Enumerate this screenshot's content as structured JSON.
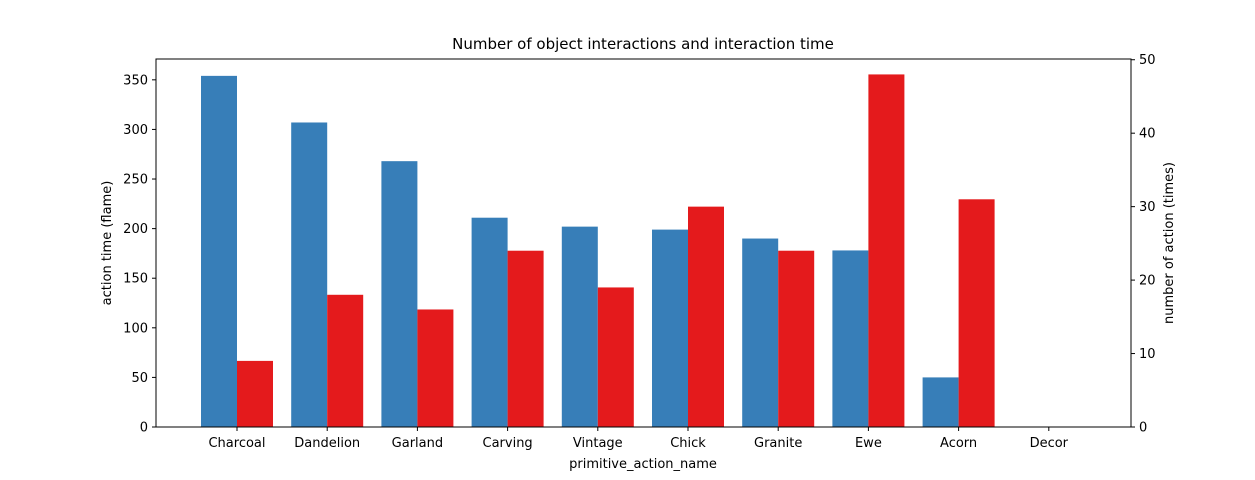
{
  "chart_data": {
    "type": "bar",
    "title": "Number of object interactions and interaction time",
    "xlabel": "primitive_action_name",
    "ylabel": "action time (flame)",
    "y2label": "number of action (times)",
    "categories": [
      "Charcoal",
      "Dandelion",
      "Garland",
      "Carving",
      "Vintage",
      "Chick",
      "Granite",
      "Ewe",
      "Acorn",
      "Decor"
    ],
    "series": [
      {
        "axis": "left",
        "color": "#377eb8",
        "values": [
          354,
          307,
          268,
          211,
          202,
          199,
          190,
          178,
          50,
          0
        ]
      },
      {
        "axis": "right",
        "color": "#e41a1c",
        "values": [
          9,
          18,
          16,
          24,
          19,
          30,
          24,
          48,
          31,
          0
        ]
      }
    ],
    "ylim": [
      0,
      371
    ],
    "y2lim": [
      0,
      50.1
    ],
    "yticks": [
      0,
      50,
      100,
      150,
      200,
      250,
      300,
      350
    ],
    "y2ticks": [
      0,
      10,
      20,
      30,
      40,
      50
    ],
    "grid": false,
    "legend": "none"
  }
}
